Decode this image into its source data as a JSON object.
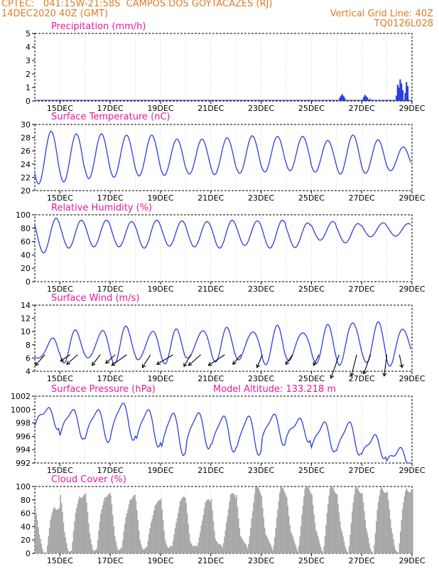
{
  "header": {
    "line1_left": "CPTEC:   041:15W-21:58S  CAMPOS DOS GOYTACAZES (RJ)",
    "line2_left": "14DEC2020 40Z (GMT)",
    "line2_right": "Vertical Grid Line: 40Z",
    "line3_right": "TQ0126L028"
  },
  "colors": {
    "header": "#e07b28",
    "title": "#e8189a",
    "line": "#2b3fe0",
    "cloud": "#a8a8a8",
    "grid": "#bbbbbb",
    "axis": "#000000"
  },
  "x_tick_labels": [
    "15DEC",
    "17DEC",
    "19DEC",
    "21DEC",
    "23DEC",
    "25DEC",
    "27DEC",
    "29DEC"
  ],
  "chart_data": [
    {
      "id": "precip",
      "type": "bar",
      "title": "Precipitation (mm/h)",
      "ylim": [
        0,
        5
      ],
      "yticks": [
        0,
        1,
        2,
        3,
        4,
        5
      ],
      "x_unit": "days since 14DEC2020 00Z",
      "bars": [
        [
          12.1,
          0.25
        ],
        [
          12.15,
          0.4
        ],
        [
          12.2,
          0.5
        ],
        [
          12.25,
          0.35
        ],
        [
          12.3,
          0.2
        ],
        [
          13.05,
          0.3
        ],
        [
          13.1,
          0.45
        ],
        [
          13.15,
          0.35
        ],
        [
          13.2,
          0.25
        ],
        [
          13.3,
          0.15
        ],
        [
          14.35,
          0.4
        ],
        [
          14.4,
          1.2
        ],
        [
          14.45,
          1.0
        ],
        [
          14.5,
          1.6
        ],
        [
          14.55,
          1.3
        ],
        [
          14.6,
          0.8
        ],
        [
          14.7,
          0.6
        ],
        [
          14.75,
          1.4
        ],
        [
          14.8,
          1.1
        ]
      ]
    },
    {
      "id": "temp",
      "type": "line",
      "title": "Surface Temperature (nC)",
      "ylim": [
        20,
        30
      ],
      "yticks": [
        20,
        22,
        24,
        26,
        28,
        30
      ],
      "min": [
        21.0,
        21.3,
        21.8,
        22.0,
        22.2,
        22.3,
        22.5,
        22.4,
        22.6,
        22.8,
        23.0,
        22.8,
        22.5,
        22.6,
        23.0
      ],
      "max": [
        29.0,
        28.6,
        28.6,
        28.4,
        28.4,
        27.8,
        27.8,
        28.0,
        28.3,
        28.2,
        28.2,
        27.6,
        28.4,
        27.7,
        26.6
      ]
    },
    {
      "id": "rh",
      "type": "line",
      "title": "Relative Humidity (%)",
      "ylim": [
        0,
        100
      ],
      "yticks": [
        0,
        20,
        40,
        60,
        80,
        100
      ],
      "min": [
        43,
        50,
        52,
        52,
        50,
        53,
        52,
        50,
        54,
        50,
        51,
        62,
        58,
        67,
        68
      ],
      "max": [
        95,
        92,
        92,
        90,
        92,
        91,
        90,
        92,
        91,
        92,
        88,
        90,
        87,
        88,
        87
      ]
    },
    {
      "id": "wind",
      "type": "line",
      "title": "Surface Wind (m/s)",
      "ylim": [
        4,
        14
      ],
      "yticks": [
        4,
        6,
        8,
        10,
        12,
        14
      ],
      "min": [
        5.5,
        5.7,
        5.6,
        5.6,
        5.4,
        5.5,
        5.8,
        5.7,
        5.6,
        5.2,
        5.6,
        5.3,
        5.0,
        5.3,
        5.0
      ],
      "max": [
        9.0,
        10.0,
        10.3,
        10.5,
        10.3,
        10.0,
        10.5,
        10.2,
        10.4,
        10.5,
        10.3,
        10.6,
        11.8,
        11.0,
        10.8
      ],
      "vectors": [
        [
          0.4,
          -0.35,
          -0.5
        ],
        [
          1.4,
          -0.35,
          -0.3
        ],
        [
          1.7,
          -0.4,
          -0.45
        ],
        [
          2.6,
          -0.3,
          -0.5
        ],
        [
          3.2,
          -0.35,
          -0.4
        ],
        [
          3.65,
          -0.55,
          -0.5
        ],
        [
          4.6,
          -0.3,
          -0.6
        ],
        [
          5.5,
          -0.6,
          -0.45
        ],
        [
          6.2,
          -0.25,
          -0.55
        ],
        [
          6.6,
          -0.45,
          -0.5
        ],
        [
          7.55,
          -0.6,
          -0.5
        ],
        [
          8.2,
          -0.3,
          -0.45
        ],
        [
          9.05,
          -0.2,
          -0.6
        ],
        [
          10.25,
          -0.25,
          -0.45
        ],
        [
          11.3,
          -0.2,
          -0.5
        ],
        [
          12.1,
          -0.3,
          -1.1
        ],
        [
          12.8,
          -0.2,
          -1.0
        ],
        [
          13.35,
          -0.25,
          -0.9
        ],
        [
          14.0,
          -0.1,
          -1.0
        ],
        [
          14.5,
          0.1,
          -0.6
        ]
      ]
    },
    {
      "id": "pres",
      "type": "line",
      "title": "Surface Pressure (hPa)",
      "title2": "Model Altitude: 133.218  m",
      "ylim": [
        992,
        1002
      ],
      "yticks": [
        992,
        994,
        996,
        998,
        1000,
        1002
      ],
      "min": [
        997.5,
        996.0,
        995.5,
        995.8,
        994.8,
        993.5,
        994.5,
        994.0,
        993.5,
        995.0,
        995.5,
        994.0,
        993.5,
        993.0,
        992.0
      ],
      "max": [
        1000.2,
        1000.0,
        1000.0,
        1001.0,
        1000.0,
        999.5,
        999.5,
        999.0,
        999.0,
        999.2,
        998.5,
        998.0,
        998.0,
        996.0,
        994.0
      ]
    },
    {
      "id": "cloud",
      "type": "bar",
      "title": "Cloud Cover (%)",
      "ylim": [
        0,
        100
      ],
      "yticks": [
        0,
        20,
        40,
        60,
        80,
        100
      ],
      "daily_profile": [
        [
          0,
          85
        ],
        [
          0.15,
          30
        ],
        [
          0.3,
          10
        ],
        [
          0.45,
          5
        ],
        [
          0.6,
          55
        ],
        [
          0.75,
          90
        ],
        [
          0.9,
          88
        ],
        [
          1,
          85
        ]
      ],
      "daily_scale": [
        0.8,
        1.0,
        1.0,
        0.95,
        0.85,
        0.9,
        0.85,
        0.95,
        1.05,
        1.05,
        1.1,
        1.1,
        1.1,
        1.1,
        1.1
      ]
    }
  ]
}
